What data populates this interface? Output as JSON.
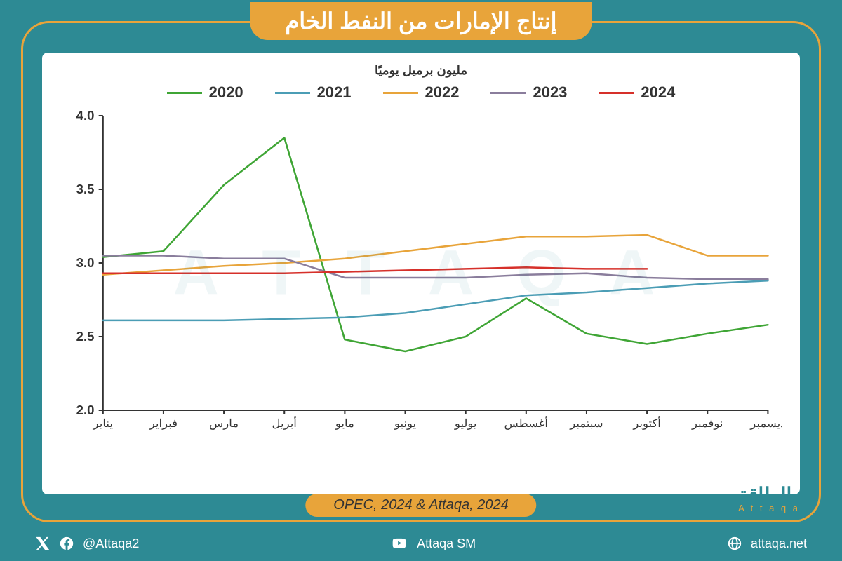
{
  "title": "إنتاج الإمارات من النفط الخام",
  "yaxis_title": "مليون برميل يوميًا",
  "source": "OPEC, 2024 & Attaqa, 2024",
  "brand": {
    "ar": "الطاقة",
    "en": "A t t a q a"
  },
  "watermark": "A T T A Q A",
  "footer": {
    "handle": "@Attaqa2",
    "youtube": "Attaqa SM",
    "site": "attaqa.net"
  },
  "chart": {
    "type": "line",
    "background_color": "#ffffff",
    "page_bg": "#2d8a94",
    "accent": "#e8a43a",
    "ylim": [
      2.0,
      4.0
    ],
    "yticks": [
      2.0,
      2.5,
      3.0,
      3.5,
      4.0
    ],
    "ytick_labels": [
      "2.0",
      "2.5",
      "3.0",
      "3.5",
      "4.0"
    ],
    "months": [
      "يناير",
      "فبراير",
      "مارس",
      "أبريل",
      "مايو",
      "يونيو",
      "يوليو",
      "أغسطس",
      "سبتمبر",
      "أكتوبر",
      "نوفمبر",
      "ديسمبر"
    ],
    "line_width": 2.5,
    "axis_color": "#333333",
    "legend_fontsize": 22,
    "axis_fontsize": 18,
    "series": [
      {
        "name": "2020",
        "color": "#3fa535",
        "values": [
          3.04,
          3.08,
          3.53,
          3.85,
          2.48,
          2.4,
          2.5,
          2.76,
          2.52,
          2.45,
          2.52,
          2.58
        ]
      },
      {
        "name": "2021",
        "color": "#4b9db5",
        "values": [
          2.61,
          2.61,
          2.61,
          2.62,
          2.63,
          2.66,
          2.72,
          2.78,
          2.8,
          2.83,
          2.86,
          2.88
        ]
      },
      {
        "name": "2022",
        "color": "#e8a43a",
        "values": [
          2.92,
          2.95,
          2.98,
          3.0,
          3.03,
          3.08,
          3.13,
          3.18,
          3.18,
          3.19,
          3.05,
          3.05
        ]
      },
      {
        "name": "2023",
        "color": "#8a7d9c",
        "values": [
          3.05,
          3.05,
          3.03,
          3.03,
          2.9,
          2.9,
          2.9,
          2.92,
          2.93,
          2.9,
          2.89,
          2.89
        ]
      },
      {
        "name": "2024",
        "color": "#d6302a",
        "values": [
          2.93,
          2.93,
          2.93,
          2.93,
          2.94,
          2.95,
          2.96,
          2.97,
          2.96,
          2.96
        ]
      }
    ]
  }
}
